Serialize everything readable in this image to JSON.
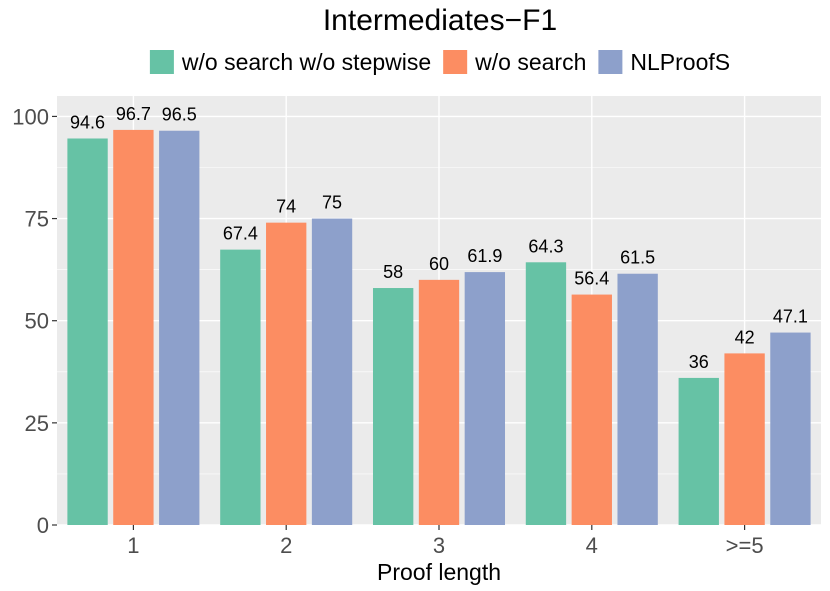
{
  "chart_data": {
    "type": "bar",
    "title": "Intermediates−F1",
    "xlabel": "Proof length",
    "ylabel": "",
    "categories": [
      "1",
      "2",
      "3",
      "4",
      ">=5"
    ],
    "series": [
      {
        "name": "w/o search w/o stepwise",
        "color": "#66c2a5",
        "values": [
          94.6,
          67.4,
          58,
          64.3,
          36
        ],
        "labels": [
          "94.6",
          "67.4",
          "58",
          "64.3",
          "36"
        ]
      },
      {
        "name": "w/o search",
        "color": "#fc8d62",
        "values": [
          96.7,
          74,
          60,
          56.4,
          42
        ],
        "labels": [
          "96.7",
          "74",
          "60",
          "56.4",
          "42"
        ]
      },
      {
        "name": "NLProofS",
        "color": "#8da0cb",
        "values": [
          96.5,
          75,
          61.9,
          61.5,
          47.1
        ],
        "labels": [
          "96.5",
          "75",
          "61.9",
          "61.5",
          "47.1"
        ]
      }
    ],
    "ylim": [
      0,
      105
    ],
    "yticks": [
      0,
      25,
      50,
      75,
      100
    ],
    "ytick_labels": [
      "0",
      "25",
      "50",
      "75",
      "100"
    ],
    "grid": true,
    "legend": "top",
    "panel_background": "#ebebeb",
    "grid_color": "#ffffff"
  }
}
